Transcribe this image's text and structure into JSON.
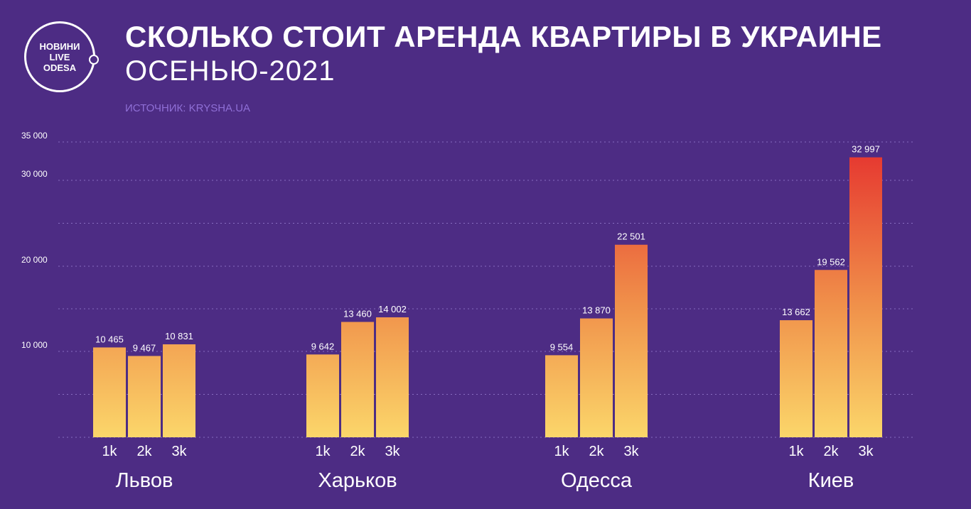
{
  "header": {
    "logo_lines": [
      "НОВИНИ",
      "LIVE",
      "ODESA"
    ],
    "title": "СКОЛЬКО СТОИТ АРЕНДА КВАРТИРЫ В УКРАИНЕ",
    "subtitle": "ОСЕНЬЮ-2021",
    "source": "ИСТОЧНИК: KRYSHA.UA"
  },
  "colors": {
    "background": "#4d2c84",
    "bar_low": "#fbd66a",
    "bar_mid": "#f0904a",
    "bar_high": "#e5312e",
    "source_text": "#8f6fd6",
    "grid": "#9c83d6"
  },
  "chart_data": {
    "type": "bar",
    "title": "СКОЛЬКО СТОИТ АРЕНДА КВАРТИРЫ В УКРАИНЕ",
    "subtitle": "ОСЕНЬЮ-2021",
    "groups": [
      "Львов",
      "Харьков",
      "Одесса",
      "Киев"
    ],
    "sub_categories": [
      "1k",
      "2k",
      "3k"
    ],
    "values": [
      [
        10465,
        9467,
        10831
      ],
      [
        9642,
        13460,
        14002
      ],
      [
        9554,
        13870,
        22501
      ],
      [
        13662,
        19562,
        32997
      ]
    ],
    "value_labels": [
      [
        "10 465",
        "9 467",
        "10 831"
      ],
      [
        "9 642",
        "13 460",
        "14 002"
      ],
      [
        "9 554",
        "13 870",
        "22 501"
      ],
      [
        "13 662",
        "19 562",
        "32 997"
      ]
    ],
    "y_ticks": [
      10000,
      20000,
      30000,
      35000
    ],
    "y_tick_labels": [
      "10 000",
      "20 000",
      "30 000",
      "35 000"
    ],
    "ylim": [
      0,
      35000
    ],
    "grid": true,
    "grid_step": 5000,
    "legend": "none"
  }
}
